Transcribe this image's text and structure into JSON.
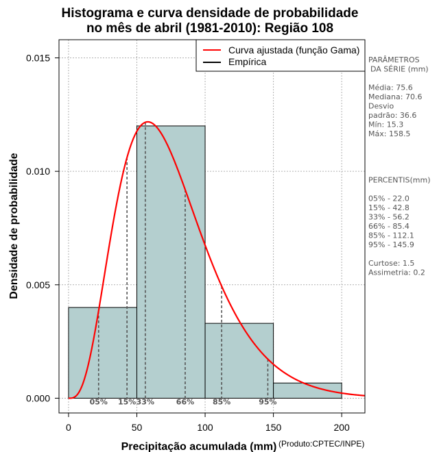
{
  "chart_data": {
    "type": "bar",
    "title_line1": "Histograma e curva densidade de probabilidade",
    "title_line2": "no mês de abril (1981-2010): Região 108",
    "xlabel": "Precipitação acumulada (mm)",
    "ylabel": "Densidade de probabilidade",
    "credit": "(Produto:CPTEC/INPE)",
    "xlim": [
      -7,
      217
    ],
    "ylim": [
      -0.00065,
      0.0158
    ],
    "x_ticks": [
      0,
      50,
      100,
      150,
      200
    ],
    "x_tick_labels": [
      "0",
      "50",
      "100",
      "150",
      "200"
    ],
    "y_ticks": [
      0.0,
      0.005,
      0.01,
      0.015
    ],
    "y_tick_labels": [
      "0.000",
      "0.005",
      "0.010",
      "0.015"
    ],
    "grid": true,
    "bins": [
      {
        "start": 0,
        "end": 50,
        "density": 0.004
      },
      {
        "start": 50,
        "end": 100,
        "density": 0.012
      },
      {
        "start": 100,
        "end": 150,
        "density": 0.0033
      },
      {
        "start": 150,
        "end": 200,
        "density": 0.00067
      }
    ],
    "bar_color": "#b4cfcf",
    "curve": {
      "name": "Curva ajustada (função Gama)",
      "shape": 4.3,
      "mean": 75.6,
      "color": "#ff0000"
    },
    "percentile_lines": [
      {
        "label": "05%",
        "x": 22.0
      },
      {
        "label": "15%",
        "x": 42.8
      },
      {
        "label": "33%",
        "x": 56.2
      },
      {
        "label": "66%",
        "x": 85.4
      },
      {
        "label": "85%",
        "x": 112.1
      },
      {
        "label": "95%",
        "x": 145.9
      }
    ],
    "legend": [
      {
        "label": "Curva ajustada (função Gama)",
        "color": "#ff0000"
      },
      {
        "label": "Empírica",
        "color": "#000000"
      }
    ],
    "legend_position": "top-right"
  },
  "side_panel": {
    "lines": [
      "PARÂMETROS",
      "DA SÉRIE (mm)",
      "",
      "Média:  75.6",
      "Mediana:  70.6",
      "Desvio",
      "padrão:  36.6",
      "Mín:  15.3",
      "Máx:  158.5",
      "",
      "",
      "",
      "",
      "PERCENTIS(mm)",
      "",
      "05% -  22.0",
      "15% -  42.8",
      "33% -  56.2",
      "66% -  85.4",
      "85% -  112.1",
      "95% -  145.9",
      "",
      "Curtose:  1.5",
      "Assimetria:  0.2"
    ]
  }
}
